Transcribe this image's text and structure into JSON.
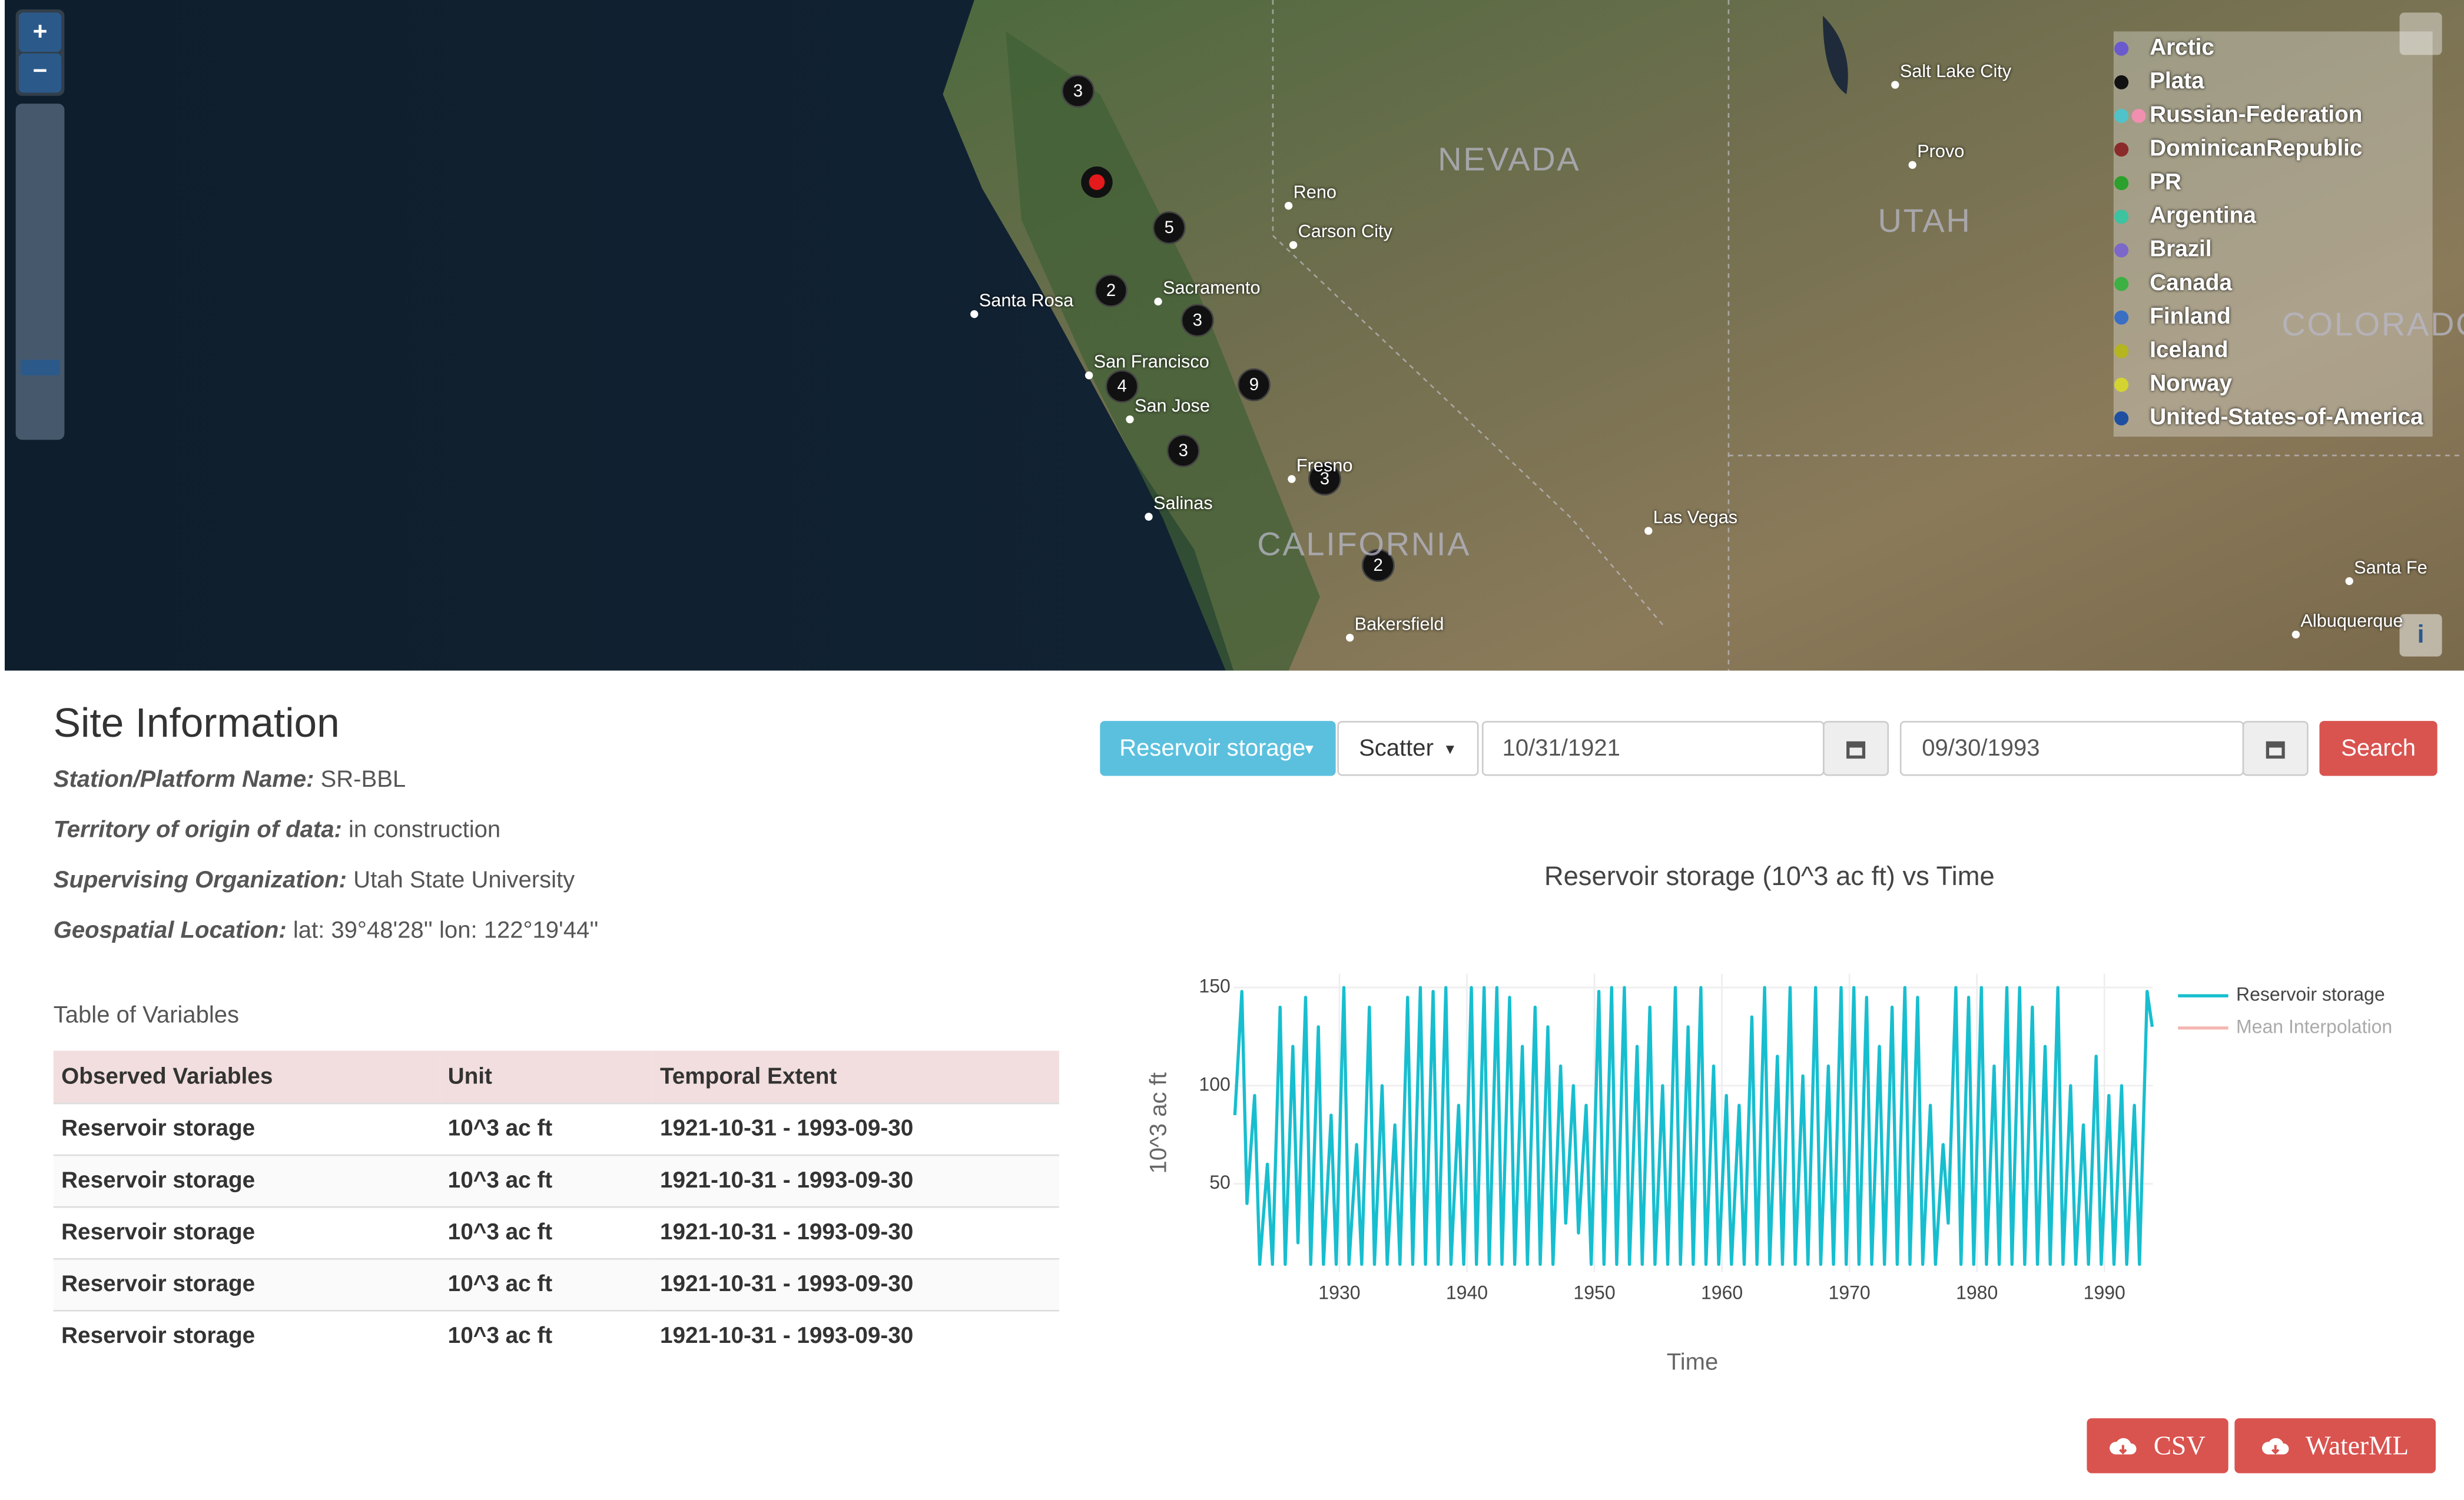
{
  "map": {
    "clusters": [
      "3",
      "5",
      "2",
      "3",
      "4",
      "9",
      "3",
      "3",
      "2"
    ],
    "cities": [
      "Reno",
      "Carson City",
      "Sacramento",
      "Santa Rosa",
      "San Francisco",
      "San Jose",
      "Salinas",
      "Fresno",
      "Bakersfield",
      "Las Vegas",
      "Salt Lake City",
      "Provo",
      "Santa Fe",
      "Albuquerque"
    ],
    "states": [
      "NEVADA",
      "UTAH",
      "CALIFORNIA",
      "COLORADO"
    ],
    "zoom_in": "+",
    "zoom_out": "−",
    "info": "i",
    "legend": [
      {
        "name": "Arctic",
        "colors": [
          "#6a5acd"
        ]
      },
      {
        "name": "Plata",
        "colors": [
          "#111111"
        ]
      },
      {
        "name": "Russian-Federation",
        "colors": [
          "#4fc3c9",
          "#f08fb0"
        ]
      },
      {
        "name": "DominicanRepublic",
        "colors": [
          "#8b2a2a"
        ]
      },
      {
        "name": "PR",
        "colors": [
          "#2ca02c"
        ]
      },
      {
        "name": "Argentina",
        "colors": [
          "#3cc3a0"
        ]
      },
      {
        "name": "Brazil",
        "colors": [
          "#7b68c8"
        ]
      },
      {
        "name": "Canada",
        "colors": [
          "#3cb043"
        ]
      },
      {
        "name": "Finland",
        "colors": [
          "#3a6fc4"
        ]
      },
      {
        "name": "Iceland",
        "colors": [
          "#b5b520"
        ]
      },
      {
        "name": "Norway",
        "colors": [
          "#d4d430"
        ]
      },
      {
        "name": "United-States-of-America",
        "colors": [
          "#1f4fa0"
        ]
      }
    ]
  },
  "site": {
    "title": "Site Information",
    "fields": [
      {
        "label": "Station/Platform Name:",
        "value": "SR-BBL"
      },
      {
        "label": "Territory of origin of data:",
        "value": "in construction"
      },
      {
        "label": "Supervising Organization:",
        "value": "Utah State University"
      },
      {
        "label": "Geospatial Location:",
        "value": "lat: 39°48'28'' lon: 122°19'44''"
      }
    ],
    "table_title": "Table of Variables"
  },
  "table": {
    "header": [
      "Observed Variables",
      "Unit",
      "Temporal Extent"
    ],
    "rows": [
      [
        "Reservoir storage",
        "10^3 ac ft",
        "1921-10-31 - 1993-09-30"
      ],
      [
        "Reservoir storage",
        "10^3 ac ft",
        "1921-10-31 - 1993-09-30"
      ],
      [
        "Reservoir storage",
        "10^3 ac ft",
        "1921-10-31 - 1993-09-30"
      ],
      [
        "Reservoir storage",
        "10^3 ac ft",
        "1921-10-31 - 1993-09-30"
      ],
      [
        "Reservoir storage",
        "10^3 ac ft",
        "1921-10-31 - 1993-09-30"
      ]
    ]
  },
  "controls": {
    "variable": "Reservoir storage",
    "plot_type": "Scatter",
    "start_date": "10/31/1921",
    "end_date": "09/30/1993",
    "search": "Search"
  },
  "downloads": [
    "CSV",
    "WaterML"
  ],
  "chart_data": {
    "type": "line",
    "title": "Reservoir storage (10^3 ac ft) vs Time",
    "xlabel": "Time",
    "ylabel": "10^3 ac ft",
    "xlim": [
      1921.7,
      1993.8
    ],
    "xticks": [
      1930,
      1940,
      1950,
      1960,
      1970,
      1980,
      1990
    ],
    "ylim": [
      5,
      157
    ],
    "yticks": [
      50,
      100,
      150
    ],
    "grid": true,
    "x": [
      1921.8,
      1922.35,
      1922.75,
      1923.35,
      1923.75,
      1924.35,
      1924.75,
      1925.35,
      1925.75,
      1926.35,
      1926.75,
      1927.35,
      1927.75,
      1928.35,
      1928.75,
      1929.35,
      1929.75,
      1930.35,
      1930.75,
      1931.35,
      1931.75,
      1932.35,
      1932.75,
      1933.35,
      1933.75,
      1934.35,
      1934.75,
      1935.35,
      1935.75,
      1936.35,
      1936.75,
      1937.35,
      1937.75,
      1938.35,
      1938.75,
      1939.35,
      1939.75,
      1940.35,
      1940.75,
      1941.35,
      1941.75,
      1942.35,
      1942.75,
      1943.35,
      1943.75,
      1944.35,
      1944.75,
      1945.35,
      1945.75,
      1946.35,
      1946.75,
      1947.35,
      1947.75,
      1948.35,
      1948.75,
      1949.35,
      1949.75,
      1950.35,
      1950.75,
      1951.35,
      1951.75,
      1952.35,
      1952.75,
      1953.35,
      1953.75,
      1954.35,
      1954.75,
      1955.35,
      1955.75,
      1956.35,
      1956.75,
      1957.35,
      1957.75,
      1958.35,
      1958.75,
      1959.35,
      1959.75,
      1960.35,
      1960.75,
      1961.35,
      1961.75,
      1962.35,
      1962.75,
      1963.35,
      1963.75,
      1964.35,
      1964.75,
      1965.35,
      1965.75,
      1966.35,
      1966.75,
      1967.35,
      1967.75,
      1968.35,
      1968.75,
      1969.35,
      1969.75,
      1970.35,
      1970.75,
      1971.35,
      1971.75,
      1972.35,
      1972.75,
      1973.35,
      1973.75,
      1974.35,
      1974.75,
      1975.35,
      1975.75,
      1976.35,
      1976.75,
      1977.35,
      1977.75,
      1978.35,
      1978.75,
      1979.35,
      1979.75,
      1980.35,
      1980.75,
      1981.35,
      1981.75,
      1982.35,
      1982.75,
      1983.35,
      1983.75,
      1984.35,
      1984.75,
      1985.35,
      1985.75,
      1986.35,
      1986.75,
      1987.35,
      1987.75,
      1988.35,
      1988.75,
      1989.35,
      1989.75,
      1990.35,
      1990.75,
      1991.35,
      1991.75,
      1992.35,
      1992.75,
      1993.35,
      1993.75
    ],
    "series": [
      {
        "name": "Reservoir storage",
        "color": "#17becf",
        "values": [
          85,
          148,
          40,
          95,
          9,
          60,
          9,
          140,
          9,
          120,
          20,
          145,
          9,
          130,
          9,
          85,
          9,
          150,
          9,
          70,
          9,
          140,
          9,
          100,
          9,
          80,
          9,
          145,
          9,
          150,
          9,
          148,
          9,
          150,
          9,
          90,
          9,
          150,
          9,
          150,
          9,
          150,
          9,
          145,
          9,
          120,
          9,
          140,
          9,
          130,
          9,
          110,
          30,
          100,
          25,
          90,
          9,
          148,
          9,
          150,
          9,
          150,
          9,
          120,
          9,
          140,
          9,
          100,
          9,
          150,
          9,
          130,
          9,
          150,
          9,
          110,
          9,
          95,
          9,
          90,
          9,
          135,
          9,
          150,
          9,
          115,
          9,
          150,
          9,
          105,
          9,
          150,
          9,
          110,
          9,
          150,
          9,
          150,
          9,
          145,
          9,
          120,
          9,
          140,
          9,
          150,
          9,
          145,
          9,
          90,
          9,
          70,
          30,
          150,
          9,
          145,
          9,
          150,
          9,
          110,
          9,
          150,
          9,
          150,
          9,
          140,
          9,
          120,
          9,
          150,
          9,
          100,
          9,
          80,
          9,
          115,
          9,
          95,
          9,
          100,
          9,
          90,
          9,
          148,
          130
        ]
      },
      {
        "name": "Mean Interpolation",
        "color": "#f4b6b0"
      }
    ]
  }
}
